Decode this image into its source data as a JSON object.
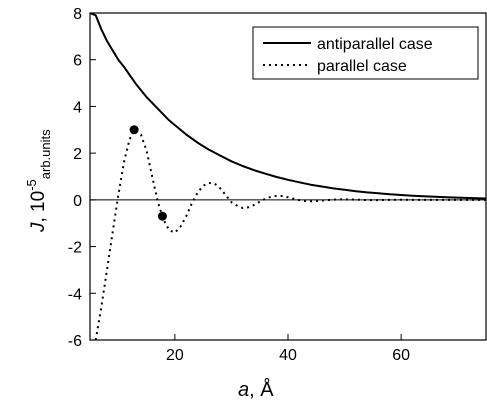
{
  "chart_data": {
    "type": "line",
    "xlabel": {
      "var": "a",
      "sep": ", ",
      "unit": "Å"
    },
    "ylabel": {
      "var": "J",
      "sep": ", 10",
      "exp": "-5",
      "unit": "arb.units"
    },
    "xlim": [
      5,
      75
    ],
    "ylim": [
      -6,
      8
    ],
    "xticks": [
      20,
      40,
      60
    ],
    "yticks": [
      -6,
      -4,
      -2,
      0,
      2,
      4,
      6,
      8
    ],
    "zero_line": true,
    "legend": {
      "position": "top-right"
    },
    "series": [
      {
        "name": "antiparallel case",
        "style": "solid",
        "x": [
          5,
          6,
          7,
          8,
          9,
          10,
          11,
          12,
          13,
          14,
          15,
          16,
          17,
          18,
          19,
          20,
          22,
          24,
          26,
          28,
          30,
          32,
          34,
          36,
          38,
          40,
          42,
          44,
          46,
          48,
          50,
          52,
          54,
          56,
          58,
          60,
          62,
          64,
          66,
          68,
          70,
          72,
          75
        ],
        "y": [
          8.0,
          7.9,
          7.3,
          6.8,
          6.4,
          6.0,
          5.7,
          5.35,
          5.0,
          4.7,
          4.4,
          4.15,
          3.9,
          3.65,
          3.4,
          3.2,
          2.8,
          2.45,
          2.15,
          1.9,
          1.65,
          1.45,
          1.27,
          1.12,
          0.98,
          0.86,
          0.75,
          0.65,
          0.57,
          0.49,
          0.43,
          0.37,
          0.32,
          0.28,
          0.24,
          0.21,
          0.18,
          0.155,
          0.13,
          0.11,
          0.095,
          0.08,
          0.06
        ]
      },
      {
        "name": "parallel case",
        "style": "dotted",
        "x": [
          6,
          7,
          8,
          9,
          10,
          11,
          12,
          13,
          14,
          15,
          16,
          17,
          18,
          19,
          20,
          21,
          22,
          23,
          24,
          25,
          26,
          27,
          28,
          29,
          30,
          31,
          32,
          33,
          34,
          35,
          36,
          37,
          38,
          39,
          40,
          41,
          42,
          43,
          44,
          45,
          46,
          47,
          48,
          49,
          50,
          52,
          54,
          56,
          58,
          60,
          62,
          64,
          66,
          68,
          70,
          72,
          75
        ],
        "y": [
          -6.0,
          -4.6,
          -3.0,
          -1.4,
          0.2,
          1.6,
          2.6,
          3.0,
          2.8,
          2.1,
          1.0,
          -0.1,
          -0.85,
          -1.3,
          -1.4,
          -1.15,
          -0.7,
          -0.15,
          0.3,
          0.6,
          0.72,
          0.7,
          0.5,
          0.2,
          -0.1,
          -0.25,
          -0.35,
          -0.32,
          -0.22,
          -0.08,
          0.05,
          0.13,
          0.17,
          0.16,
          0.11,
          0.05,
          -0.01,
          -0.05,
          -0.06,
          -0.05,
          -0.03,
          -0.01,
          0.01,
          0.02,
          0.02,
          0.01,
          -0.01,
          -0.01,
          0.0,
          0.005,
          0.0,
          0.0,
          0.0,
          0.0,
          0.0,
          0.0,
          0.0
        ]
      }
    ],
    "markers": [
      {
        "x": 12.8,
        "y": 3.0
      },
      {
        "x": 17.8,
        "y": -0.7
      }
    ]
  }
}
